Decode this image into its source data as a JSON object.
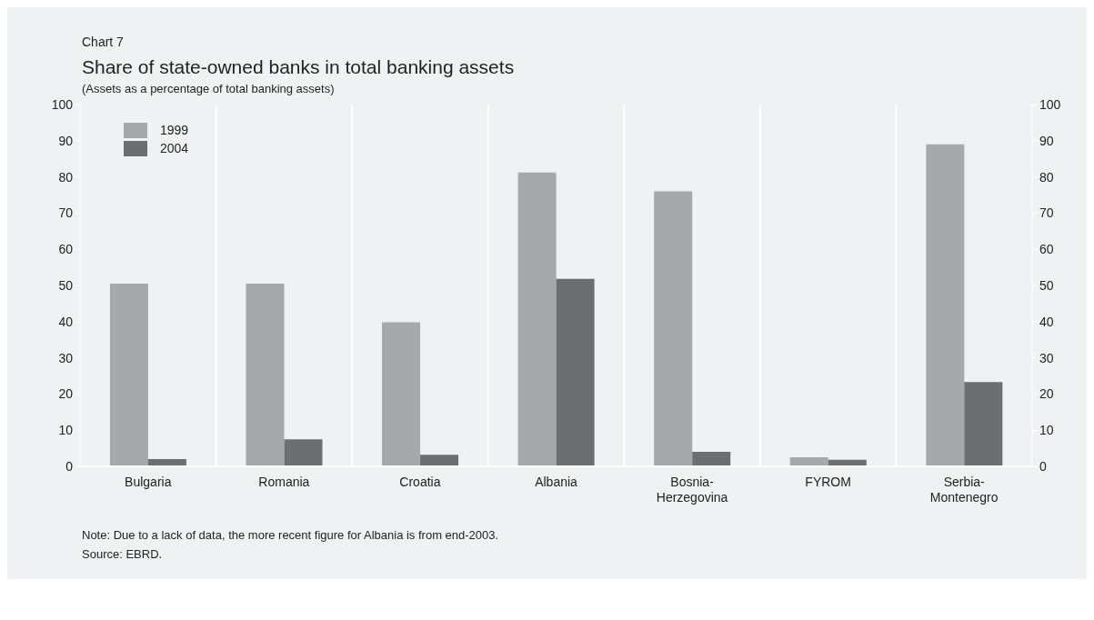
{
  "chart_data": {
    "type": "bar",
    "title": "Share of state-owned banks in total banking assets",
    "subtitle": "(Assets as a percentage of total banking assets)",
    "categories": [
      "Bulgaria",
      "Romania",
      "Croatia",
      "Albania",
      "Bosnia-Herzegovina",
      "FYROM",
      "Serbia-Montenegro"
    ],
    "series": [
      {
        "name": "1999",
        "color": "#a7a8ab",
        "values": [
          50.5,
          50.5,
          39.8,
          81.2,
          76,
          2.5,
          89
        ]
      },
      {
        "name": "2004",
        "color": "#6d6e71",
        "values": [
          2,
          7.5,
          3.2,
          51.8,
          4,
          1.8,
          23.3
        ]
      }
    ],
    "ylim": [
      0,
      100
    ],
    "yticks": [
      0,
      10,
      20,
      30,
      40,
      50,
      60,
      70,
      80,
      90,
      100
    ],
    "y2lim": [
      0,
      100
    ],
    "y2ticks": [
      0,
      10,
      20,
      30,
      40,
      50,
      60,
      70,
      80,
      90,
      100
    ],
    "grid": "x",
    "legend": "top left",
    "annotations": [
      "Chart 7",
      "Note: Due to a lack of data, the more recent figure for Albania is from end-2003.",
      "Source: EBRD."
    ]
  }
}
